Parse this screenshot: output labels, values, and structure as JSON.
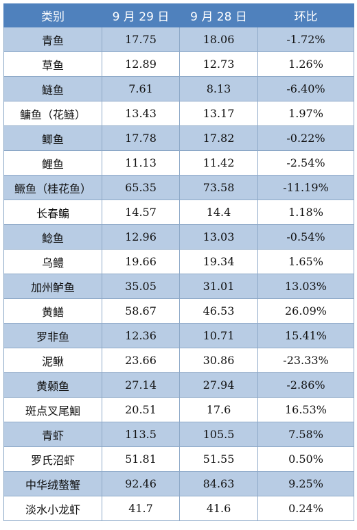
{
  "header": {
    "category": "类别",
    "sep29": "9 月 29 日",
    "sep28": "9 月 28 日",
    "change": "环比"
  },
  "rows": [
    {
      "name": "青鱼",
      "sep29": "17.75",
      "sep28": "18.06",
      "change": "-1.72%"
    },
    {
      "name": "草鱼",
      "sep29": "12.89",
      "sep28": "12.73",
      "change": "1.26%"
    },
    {
      "name": "鲢鱼",
      "sep29": "7.61",
      "sep28": "8.13",
      "change": "-6.40%"
    },
    {
      "name": "鳙鱼（花鲢）",
      "sep29": "13.43",
      "sep28": "13.17",
      "change": "1.97%"
    },
    {
      "name": "鲫鱼",
      "sep29": "17.78",
      "sep28": "17.82",
      "change": "-0.22%"
    },
    {
      "name": "鲤鱼",
      "sep29": "11.13",
      "sep28": "11.42",
      "change": "-2.54%"
    },
    {
      "name": "鳜鱼（桂花鱼）",
      "sep29": "65.35",
      "sep28": "73.58",
      "change": "-11.19%"
    },
    {
      "name": "长春鳊",
      "sep29": "14.57",
      "sep28": "14.4",
      "change": "1.18%"
    },
    {
      "name": "鲶鱼",
      "sep29": "12.96",
      "sep28": "13.03",
      "change": "-0.54%"
    },
    {
      "name": "乌鳢",
      "sep29": "19.66",
      "sep28": "19.34",
      "change": "1.65%"
    },
    {
      "name": "加州鲈鱼",
      "sep29": "35.05",
      "sep28": "31.01",
      "change": "13.03%"
    },
    {
      "name": "黄鳝",
      "sep29": "58.67",
      "sep28": "46.53",
      "change": "26.09%"
    },
    {
      "name": "罗非鱼",
      "sep29": "12.36",
      "sep28": "10.71",
      "change": "15.41%"
    },
    {
      "name": "泥鳅",
      "sep29": "23.66",
      "sep28": "30.86",
      "change": "-23.33%"
    },
    {
      "name": "黄颡鱼",
      "sep29": "27.14",
      "sep28": "27.94",
      "change": "-2.86%"
    },
    {
      "name": "斑点叉尾鮰",
      "sep29": "20.51",
      "sep28": "17.6",
      "change": "16.53%"
    },
    {
      "name": "青虾",
      "sep29": "113.5",
      "sep28": "105.5",
      "change": "7.58%"
    },
    {
      "name": "罗氏沼虾",
      "sep29": "51.81",
      "sep28": "51.55",
      "change": "0.50%"
    },
    {
      "name": "中华绒螯蟹",
      "sep29": "92.46",
      "sep28": "84.63",
      "change": "9.25%"
    },
    {
      "name": "淡水小龙虾",
      "sep29": "41.7",
      "sep28": "41.6",
      "change": "0.24%"
    }
  ]
}
